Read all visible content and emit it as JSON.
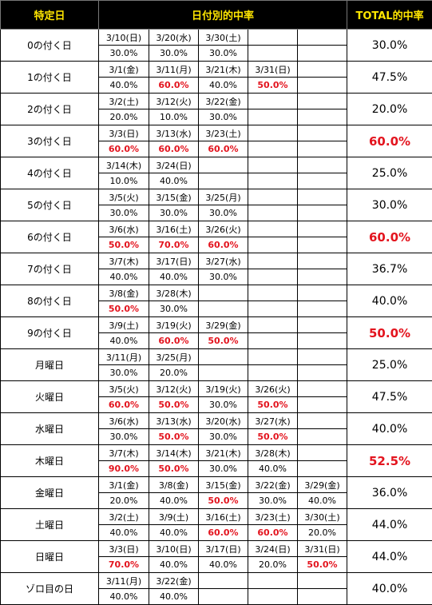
{
  "headers": {
    "specific_day": "特定日",
    "by_date_rate": "日付別的中率",
    "total_rate": "TOTAL的中率"
  },
  "highlight_color": "#e3141e",
  "header_text_color": "#ffe600",
  "rows": [
    {
      "label": "0の付く日",
      "entries": [
        {
          "date": "3/10(日)",
          "rate": "30.0%",
          "hi": false
        },
        {
          "date": "3/20(水)",
          "rate": "30.0%",
          "hi": false
        },
        {
          "date": "3/30(土)",
          "rate": "30.0%",
          "hi": false
        }
      ],
      "total": "30.0%",
      "total_hi": false
    },
    {
      "label": "1の付く日",
      "entries": [
        {
          "date": "3/1(金)",
          "rate": "40.0%",
          "hi": false
        },
        {
          "date": "3/11(月)",
          "rate": "60.0%",
          "hi": true
        },
        {
          "date": "3/21(木)",
          "rate": "40.0%",
          "hi": false
        },
        {
          "date": "3/31(日)",
          "rate": "50.0%",
          "hi": true
        }
      ],
      "total": "47.5%",
      "total_hi": false
    },
    {
      "label": "2の付く日",
      "entries": [
        {
          "date": "3/2(土)",
          "rate": "20.0%",
          "hi": false
        },
        {
          "date": "3/12(火)",
          "rate": "10.0%",
          "hi": false
        },
        {
          "date": "3/22(金)",
          "rate": "30.0%",
          "hi": false
        }
      ],
      "total": "20.0%",
      "total_hi": false
    },
    {
      "label": "3の付く日",
      "entries": [
        {
          "date": "3/3(日)",
          "rate": "60.0%",
          "hi": true
        },
        {
          "date": "3/13(水)",
          "rate": "60.0%",
          "hi": true
        },
        {
          "date": "3/23(土)",
          "rate": "60.0%",
          "hi": true
        }
      ],
      "total": "60.0%",
      "total_hi": true
    },
    {
      "label": "4の付く日",
      "entries": [
        {
          "date": "3/14(木)",
          "rate": "10.0%",
          "hi": false
        },
        {
          "date": "3/24(日)",
          "rate": "40.0%",
          "hi": false
        }
      ],
      "total": "25.0%",
      "total_hi": false
    },
    {
      "label": "5の付く日",
      "entries": [
        {
          "date": "3/5(火)",
          "rate": "30.0%",
          "hi": false
        },
        {
          "date": "3/15(金)",
          "rate": "30.0%",
          "hi": false
        },
        {
          "date": "3/25(月)",
          "rate": "30.0%",
          "hi": false
        }
      ],
      "total": "30.0%",
      "total_hi": false
    },
    {
      "label": "6の付く日",
      "entries": [
        {
          "date": "3/6(水)",
          "rate": "50.0%",
          "hi": true
        },
        {
          "date": "3/16(土)",
          "rate": "70.0%",
          "hi": true
        },
        {
          "date": "3/26(火)",
          "rate": "60.0%",
          "hi": true
        }
      ],
      "total": "60.0%",
      "total_hi": true
    },
    {
      "label": "7の付く日",
      "entries": [
        {
          "date": "3/7(木)",
          "rate": "40.0%",
          "hi": false
        },
        {
          "date": "3/17(日)",
          "rate": "40.0%",
          "hi": false
        },
        {
          "date": "3/27(水)",
          "rate": "30.0%",
          "hi": false
        }
      ],
      "total": "36.7%",
      "total_hi": false
    },
    {
      "label": "8の付く日",
      "entries": [
        {
          "date": "3/8(金)",
          "rate": "50.0%",
          "hi": true
        },
        {
          "date": "3/28(木)",
          "rate": "30.0%",
          "hi": false
        }
      ],
      "total": "40.0%",
      "total_hi": false
    },
    {
      "label": "9の付く日",
      "entries": [
        {
          "date": "3/9(土)",
          "rate": "40.0%",
          "hi": false
        },
        {
          "date": "3/19(火)",
          "rate": "60.0%",
          "hi": true
        },
        {
          "date": "3/29(金)",
          "rate": "50.0%",
          "hi": true
        }
      ],
      "total": "50.0%",
      "total_hi": true
    },
    {
      "label": "月曜日",
      "entries": [
        {
          "date": "3/11(月)",
          "rate": "30.0%",
          "hi": false
        },
        {
          "date": "3/25(月)",
          "rate": "20.0%",
          "hi": false
        }
      ],
      "total": "25.0%",
      "total_hi": false
    },
    {
      "label": "火曜日",
      "entries": [
        {
          "date": "3/5(火)",
          "rate": "60.0%",
          "hi": true
        },
        {
          "date": "3/12(火)",
          "rate": "50.0%",
          "hi": true
        },
        {
          "date": "3/19(火)",
          "rate": "30.0%",
          "hi": false
        },
        {
          "date": "3/26(火)",
          "rate": "50.0%",
          "hi": true
        }
      ],
      "total": "47.5%",
      "total_hi": false
    },
    {
      "label": "水曜日",
      "entries": [
        {
          "date": "3/6(水)",
          "rate": "30.0%",
          "hi": false
        },
        {
          "date": "3/13(水)",
          "rate": "50.0%",
          "hi": true
        },
        {
          "date": "3/20(水)",
          "rate": "30.0%",
          "hi": false
        },
        {
          "date": "3/27(水)",
          "rate": "50.0%",
          "hi": true
        }
      ],
      "total": "40.0%",
      "total_hi": false
    },
    {
      "label": "木曜日",
      "entries": [
        {
          "date": "3/7(木)",
          "rate": "90.0%",
          "hi": true
        },
        {
          "date": "3/14(木)",
          "rate": "50.0%",
          "hi": true
        },
        {
          "date": "3/21(木)",
          "rate": "30.0%",
          "hi": false
        },
        {
          "date": "3/28(木)",
          "rate": "40.0%",
          "hi": false
        }
      ],
      "total": "52.5%",
      "total_hi": true
    },
    {
      "label": "金曜日",
      "entries": [
        {
          "date": "3/1(金)",
          "rate": "20.0%",
          "hi": false
        },
        {
          "date": "3/8(金)",
          "rate": "40.0%",
          "hi": false
        },
        {
          "date": "3/15(金)",
          "rate": "50.0%",
          "hi": true
        },
        {
          "date": "3/22(金)",
          "rate": "30.0%",
          "hi": false
        },
        {
          "date": "3/29(金)",
          "rate": "40.0%",
          "hi": false
        }
      ],
      "total": "36.0%",
      "total_hi": false
    },
    {
      "label": "土曜日",
      "entries": [
        {
          "date": "3/2(土)",
          "rate": "40.0%",
          "hi": false
        },
        {
          "date": "3/9(土)",
          "rate": "40.0%",
          "hi": false
        },
        {
          "date": "3/16(土)",
          "rate": "60.0%",
          "hi": true
        },
        {
          "date": "3/23(土)",
          "rate": "60.0%",
          "hi": true
        },
        {
          "date": "3/30(土)",
          "rate": "20.0%",
          "hi": false
        }
      ],
      "total": "44.0%",
      "total_hi": false
    },
    {
      "label": "日曜日",
      "entries": [
        {
          "date": "3/3(日)",
          "rate": "70.0%",
          "hi": true
        },
        {
          "date": "3/10(日)",
          "rate": "40.0%",
          "hi": false
        },
        {
          "date": "3/17(日)",
          "rate": "40.0%",
          "hi": false
        },
        {
          "date": "3/24(日)",
          "rate": "20.0%",
          "hi": false
        },
        {
          "date": "3/31(日)",
          "rate": "50.0%",
          "hi": true
        }
      ],
      "total": "44.0%",
      "total_hi": false
    },
    {
      "label": "ゾロ目の日",
      "entries": [
        {
          "date": "3/11(月)",
          "rate": "40.0%",
          "hi": false
        },
        {
          "date": "3/22(金)",
          "rate": "40.0%",
          "hi": false
        }
      ],
      "total": "40.0%",
      "total_hi": false
    }
  ]
}
